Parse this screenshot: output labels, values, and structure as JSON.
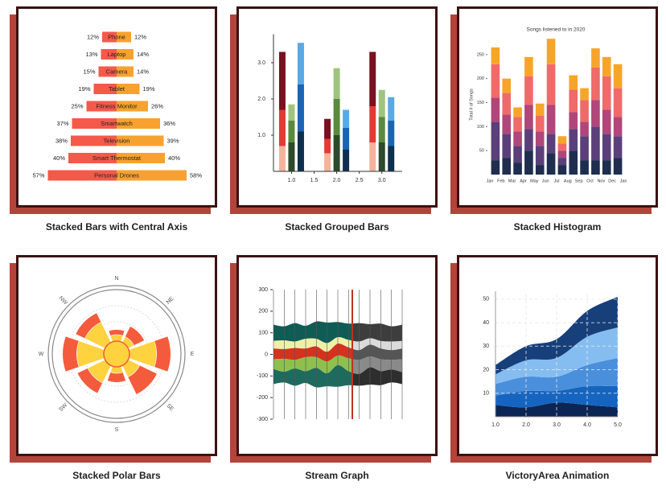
{
  "cards": [
    {
      "caption": "Stacked Bars with Central Axis",
      "chart": {
        "type": "diverging",
        "categories": [
          "Phone",
          "Laptop",
          "Camera",
          "Tablet",
          "Fitness Monitor",
          "Smartwatch",
          "Television",
          "Smart Thermostat",
          "Personal Drones"
        ],
        "series": [
          {
            "color": "#f4594a",
            "values": [
              12,
              13,
              15,
              19,
              25,
              37,
              38,
              40,
              57
            ],
            "value_labels": [
              "12%",
              "13%",
              "15%",
              "19%",
              "25%",
              "37%",
              "38%",
              "40%",
              "57%"
            ]
          },
          {
            "color": "#f7a22f",
            "values": [
              12,
              14,
              14,
              19,
              26,
              36,
              39,
              40,
              58
            ],
            "value_labels": [
              "12%",
              "14%",
              "14%",
              "19%",
              "26%",
              "36%",
              "39%",
              "40%",
              "58%"
            ]
          }
        ]
      }
    },
    {
      "caption": "Stacked Grouped Bars",
      "chart": {
        "type": "bar",
        "x": [
          1,
          2,
          3
        ],
        "xlim": [
          0.6,
          3.45
        ],
        "xticks": [
          {
            "value": 1,
            "label": "1.0"
          },
          {
            "value": 1.5,
            "label": "1.5"
          },
          {
            "value": 2,
            "label": "2.0"
          },
          {
            "value": 2.5,
            "label": "2.5"
          },
          {
            "value": 3,
            "label": "3.0"
          }
        ],
        "ylim": [
          0,
          3.7
        ],
        "yticks": [
          {
            "value": 1,
            "label": "1.0"
          },
          {
            "value": 2,
            "label": "2.0"
          },
          {
            "value": 3,
            "label": "3.0"
          }
        ],
        "groups": [
          {
            "series": [
              {
                "color": "#f5b39b",
                "values": [
                  0.7,
                  0.5,
                  0.8
                ]
              },
              {
                "color": "#e53935",
                "values": [
                  1.0,
                  0.4,
                  1.0
                ]
              },
              {
                "color": "#7a1020",
                "values": [
                  1.6,
                  0.55,
                  1.5
                ]
              }
            ]
          },
          {
            "series": [
              {
                "color": "#2e4a2c",
                "values": [
                  0.8,
                  1.0,
                  0.8
                ]
              },
              {
                "color": "#5b8a3f",
                "values": [
                  0.6,
                  1.0,
                  0.7
                ]
              },
              {
                "color": "#9fc47f",
                "values": [
                  0.45,
                  0.85,
                  0.75
                ]
              }
            ]
          },
          {
            "series": [
              {
                "color": "#0e2f4d",
                "values": [
                  1.1,
                  0.6,
                  0.7
                ]
              },
              {
                "color": "#1b64b3",
                "values": [
                  1.3,
                  0.6,
                  0.7
                ]
              },
              {
                "color": "#5aa8e6",
                "values": [
                  1.15,
                  0.5,
                  0.65
                ]
              }
            ]
          }
        ]
      }
    },
    {
      "caption": "Stacked Histogram",
      "chart": {
        "type": "histogram",
        "title": "Songs listened to in 2020",
        "y_label": "Total # of Songs",
        "bins": [
          "Jan",
          "Feb",
          "Mar",
          "Apr",
          "May",
          "Jun",
          "Jul",
          "Aug",
          "Sep",
          "Oct",
          "Nov",
          "Dec",
          "Jan"
        ],
        "ylim": [
          0,
          290
        ],
        "yticks": [
          50,
          100,
          150,
          200,
          250
        ],
        "series": [
          {
            "color": "#1f2e4f",
            "values": [
              30,
              35,
              25,
              50,
              20,
              45,
              20,
              50,
              30,
              30,
              30,
              35
            ]
          },
          {
            "color": "#5b3f7a",
            "values": [
              80,
              50,
              35,
              45,
              40,
              40,
              15,
              45,
              50,
              70,
              55,
              45
            ]
          },
          {
            "color": "#b0467a",
            "values": [
              50,
              40,
              30,
              50,
              30,
              60,
              15,
              35,
              30,
              55,
              50,
              40
            ]
          },
          {
            "color": "#f06a6a",
            "values": [
              70,
              45,
              30,
              60,
              33,
              85,
              15,
              47,
              45,
              68,
              70,
              60
            ]
          },
          {
            "color": "#f7a52a",
            "values": [
              35,
              30,
              20,
              40,
              25,
              53,
              15,
              30,
              25,
              40,
              40,
              50
            ]
          }
        ]
      }
    },
    {
      "caption": "Stacked Polar Bars",
      "chart": {
        "type": "polar",
        "categories": [
          "N",
          "NE",
          "E",
          "SE",
          "S",
          "SW",
          "W",
          "NW"
        ],
        "rlim": [
          0,
          100
        ],
        "series": [
          {
            "color": "#ffd23f",
            "values": [
              30,
              30,
              62,
              40,
              30,
              50,
              62,
              55
            ]
          },
          {
            "color": "#f45b3c",
            "values": [
              8,
              18,
              22,
              30,
              14,
              18,
              22,
              16
            ]
          }
        ]
      }
    },
    {
      "caption": "Stream Graph",
      "chart": {
        "type": "stream",
        "xlim": [
          0,
          12
        ],
        "marker_x": 7.35,
        "marker_color": "#c0321d",
        "ylim": [
          -300,
          300
        ],
        "yticks": [
          300,
          200,
          100,
          0,
          -100,
          -200,
          -300
        ],
        "series": [
          {
            "color": "#1d6b5f",
            "alt_color": "#2e2e2e",
            "values": [
              70,
              50,
              80,
              55,
              90,
              60,
              100,
              65,
              55,
              80,
              65,
              60,
              55
            ]
          },
          {
            "color": "#8dc04d",
            "alt_color": "#8a8a8a",
            "values": [
              45,
              60,
              40,
              65,
              50,
              55,
              45,
              60,
              65,
              50,
              55,
              45,
              60
            ]
          },
          {
            "color": "#d6311e",
            "alt_color": "#555555",
            "values": [
              50,
              45,
              55,
              40,
              50,
              45,
              55,
              50,
              45,
              55,
              50,
              45,
              50
            ]
          },
          {
            "color": "#eef0a8",
            "alt_color": "#dadada",
            "values": [
              35,
              40,
              30,
              45,
              35,
              40,
              30,
              35,
              40,
              30,
              35,
              40,
              35
            ]
          },
          {
            "color": "#0f5c55",
            "alt_color": "#3d3d3d",
            "values": [
              75,
              65,
              85,
              60,
              80,
              95,
              70,
              75,
              85,
              65,
              80,
              70,
              75
            ]
          }
        ]
      }
    },
    {
      "caption": "VictoryArea Animation",
      "chart": {
        "type": "area",
        "x": [
          1,
          2,
          3,
          4,
          5
        ],
        "xlim": [
          1,
          5
        ],
        "xticks": [
          {
            "value": 1,
            "label": "1.0"
          },
          {
            "value": 2,
            "label": "2.0"
          },
          {
            "value": 3,
            "label": "3.0"
          },
          {
            "value": 4,
            "label": "4.0"
          },
          {
            "value": 5,
            "label": "5.0"
          }
        ],
        "ylim": [
          0,
          52
        ],
        "yticks": [
          10,
          20,
          30,
          40,
          50
        ],
        "grid": true,
        "series": [
          {
            "color": "#0b2554",
            "values": [
              5,
              4,
              6,
              5,
              4
            ]
          },
          {
            "color": "#1565c0",
            "values": [
              4,
              7,
              5,
              8,
              9
            ]
          },
          {
            "color": "#4a8fdb",
            "values": [
              5,
              6,
              6,
              9,
              12
            ]
          },
          {
            "color": "#86bdf0",
            "values": [
              4,
              7,
              8,
              12,
              13
            ]
          },
          {
            "color": "#173f7a",
            "values": [
              4,
              6,
              8,
              11,
              13
            ]
          }
        ]
      }
    }
  ]
}
